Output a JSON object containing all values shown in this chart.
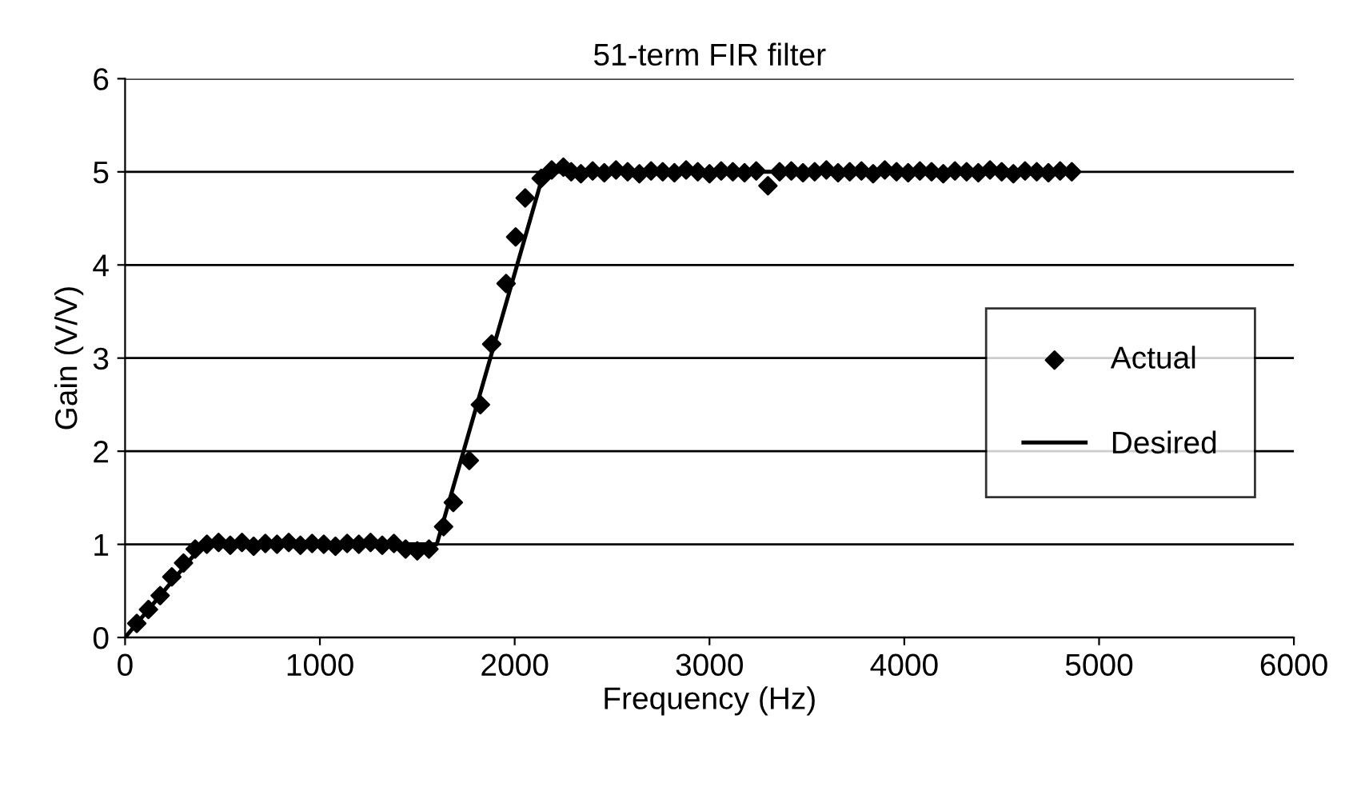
{
  "chart_data": {
    "type": "line",
    "title": "51-term FIR filter",
    "xlabel": "Frequency (Hz)",
    "ylabel": "Gain (V/V)",
    "xlim": [
      0,
      6000
    ],
    "xticks": [
      0,
      1000,
      2000,
      3000,
      4000,
      5000,
      6000
    ],
    "ylim": [
      0,
      6
    ],
    "yticks": [
      0,
      1,
      2,
      3,
      4,
      5,
      6
    ],
    "grid": "y",
    "legend": "right",
    "series": [
      {
        "name": "Actual",
        "type": "scatter",
        "marker": "diamond",
        "color": "#000000",
        "x": [
          60,
          120,
          180,
          240,
          300,
          360,
          420,
          480,
          540,
          600,
          660,
          720,
          780,
          840,
          900,
          960,
          1020,
          1080,
          1140,
          1200,
          1260,
          1320,
          1380,
          1440,
          1500,
          1560,
          1635,
          1685,
          1767,
          1824,
          1882,
          1956,
          2005,
          2054,
          2136,
          2190,
          2250,
          2290,
          2340,
          2400,
          2460,
          2520,
          2580,
          2640,
          2700,
          2760,
          2820,
          2880,
          2940,
          3000,
          3060,
          3120,
          3180,
          3240,
          3300,
          3360,
          3420,
          3480,
          3540,
          3600,
          3660,
          3720,
          3780,
          3840,
          3900,
          3960,
          4020,
          4080,
          4140,
          4200,
          4260,
          4320,
          4380,
          4440,
          4500,
          4560,
          4620,
          4680,
          4740,
          4800,
          4860
        ],
        "values": [
          0.15,
          0.3,
          0.45,
          0.65,
          0.8,
          0.95,
          1.0,
          1.02,
          0.99,
          1.02,
          0.98,
          1.01,
          1.0,
          1.02,
          0.99,
          1.01,
          1.0,
          0.98,
          1.01,
          1.0,
          1.02,
          0.99,
          1.01,
          0.95,
          0.93,
          0.95,
          1.19,
          1.45,
          1.9,
          2.5,
          3.15,
          3.8,
          4.3,
          4.72,
          4.93,
          5.02,
          5.05,
          5.0,
          4.98,
          5.01,
          4.99,
          5.02,
          5.0,
          4.98,
          5.01,
          5.0,
          4.99,
          5.02,
          5.0,
          4.98,
          5.01,
          5.0,
          4.99,
          5.01,
          4.85,
          5.0,
          5.01,
          4.99,
          5.0,
          5.02,
          4.99,
          5.0,
          5.01,
          4.98,
          5.02,
          5.0,
          4.99,
          5.01,
          5.0,
          4.98,
          5.01,
          5.0,
          4.99,
          5.02,
          5.0,
          4.98,
          5.01,
          5.0,
          4.99,
          5.01,
          5.0
        ]
      },
      {
        "name": "Desired",
        "marker": "none",
        "line_style": "solid",
        "color": "#000000",
        "x": [
          0,
          400,
          1600,
          2150,
          4880
        ],
        "values": [
          0,
          1,
          1,
          5,
          5
        ]
      }
    ]
  }
}
